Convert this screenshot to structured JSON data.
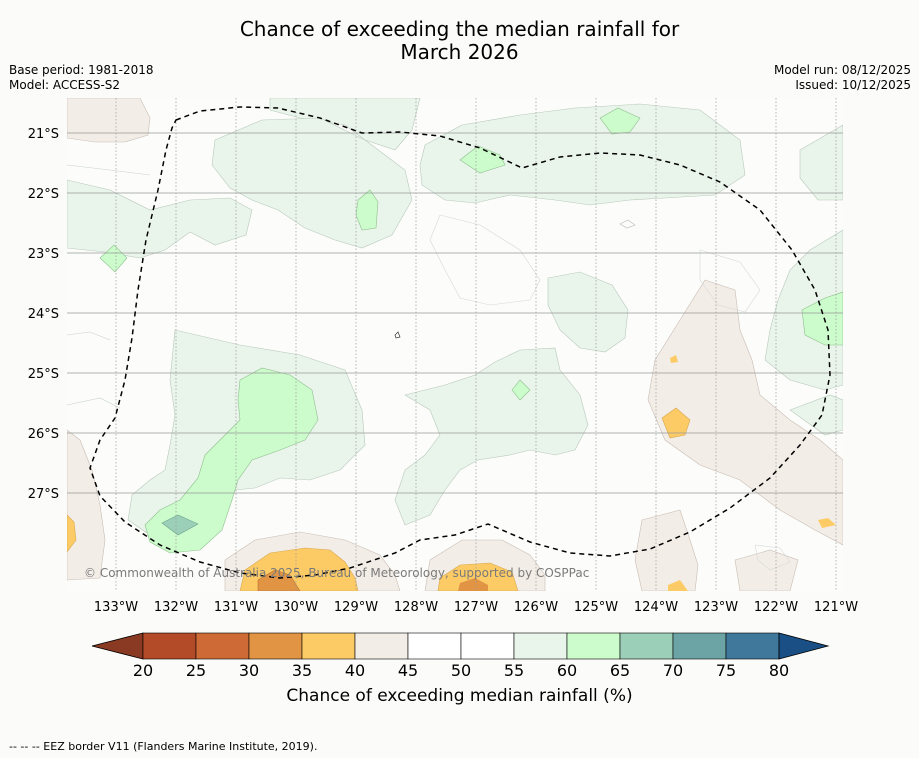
{
  "title": {
    "line1": "Chance of exceeding the median rainfall for",
    "line2": "March 2026"
  },
  "info": {
    "base_period": "Base period: 1981-2018",
    "model": "Model: ACCESS-S2",
    "model_run": "Model run: 08/12/2025",
    "issued": "Issued: 10/12/2025"
  },
  "axes": {
    "lon_labels": [
      "133°W",
      "132°W",
      "131°W",
      "130°W",
      "129°W",
      "128°W",
      "127°W",
      "126°W",
      "125°W",
      "124°W",
      "123°W",
      "122°W",
      "121°W"
    ],
    "lat_labels": [
      "21°S",
      "22°S",
      "23°S",
      "24°S",
      "25°S",
      "26°S",
      "27°S"
    ]
  },
  "copyright": "© Commonwealth of Australia 2025, Bureau of Meteorology, supported by COSPPac",
  "colorbar": {
    "ticks": [
      "20",
      "25",
      "30",
      "35",
      "40",
      "45",
      "50",
      "55",
      "60",
      "65",
      "70",
      "75",
      "80"
    ],
    "label": "Chance of exceeding median rainfall (%)",
    "colors": [
      "#8a3a22",
      "#b34b28",
      "#ce6a35",
      "#e09444",
      "#fdcb66",
      "#f3ede8",
      "#ffffff",
      "#ffffff",
      "#e9f4ea",
      "#ccfccb",
      "#9ccfb8",
      "#6ca3a4",
      "#3f789a",
      "#1a4f86"
    ]
  },
  "footer": "--  --  -- EEZ border V11 (Flanders Marine Institute, 2019)."
}
